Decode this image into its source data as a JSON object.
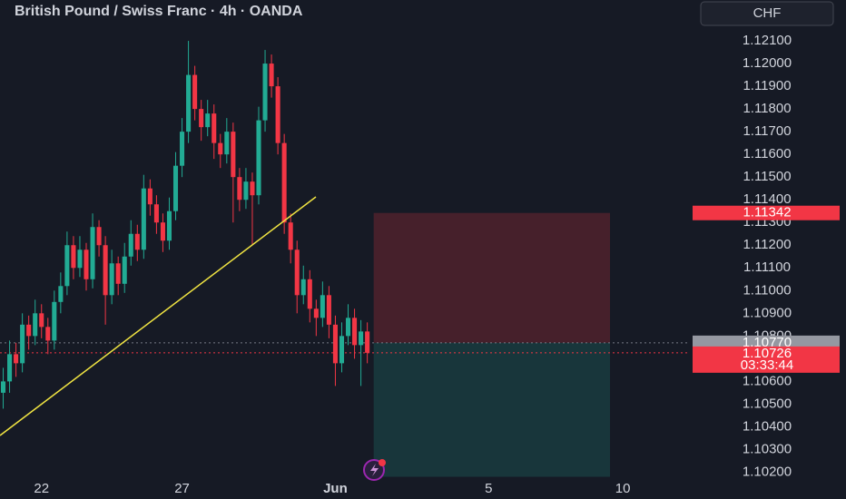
{
  "chart_data": {
    "type": "candlestick",
    "title": "British Pound / Swiss Franc · 4h · OANDA",
    "currency_button": "CHF",
    "up_color": "#22ab94",
    "down_color": "#f23645",
    "grid": false,
    "ylim": [
      1.1017,
      1.1228
    ],
    "yticks": [
      {
        "value": 1.102,
        "label": "1.10200"
      },
      {
        "value": 1.103,
        "label": "1.10300"
      },
      {
        "value": 1.104,
        "label": "1.10400"
      },
      {
        "value": 1.105,
        "label": "1.10500"
      },
      {
        "value": 1.106,
        "label": "1.10600"
      },
      {
        "value": 1.107,
        "label": "1.10700"
      },
      {
        "value": 1.108,
        "label": "1.10800"
      },
      {
        "value": 1.109,
        "label": "1.10900"
      },
      {
        "value": 1.11,
        "label": "1.11000"
      },
      {
        "value": 1.111,
        "label": "1.11100"
      },
      {
        "value": 1.112,
        "label": "1.11200"
      },
      {
        "value": 1.113,
        "label": "1.11300"
      },
      {
        "value": 1.114,
        "label": "1.11400"
      },
      {
        "value": 1.115,
        "label": "1.11500"
      },
      {
        "value": 1.116,
        "label": "1.11600"
      },
      {
        "value": 1.117,
        "label": "1.11700"
      },
      {
        "value": 1.118,
        "label": "1.11800"
      },
      {
        "value": 1.119,
        "label": "1.11900"
      },
      {
        "value": 1.12,
        "label": "1.12000"
      },
      {
        "value": 1.121,
        "label": "1.12100"
      }
    ],
    "categories": [
      null,
      null,
      null,
      null,
      null,
      null,
      "22",
      null,
      null,
      null,
      null,
      null,
      null,
      null,
      null,
      null,
      null,
      null,
      null,
      null,
      null,
      null,
      null,
      null,
      null,
      null,
      null,
      null,
      "27",
      null,
      null,
      null,
      null,
      null,
      null,
      null,
      null,
      null,
      null,
      null,
      null,
      null,
      null,
      null,
      null,
      null,
      null,
      null,
      null,
      null,
      null,
      null,
      "Jun",
      null,
      null,
      null,
      null,
      null,
      null,
      null,
      null,
      null,
      null,
      null,
      null,
      null,
      null,
      null,
      null,
      null,
      null,
      null,
      null,
      null,
      null,
      null,
      "5",
      null,
      null,
      null,
      null,
      null,
      null,
      null,
      null,
      null,
      null,
      null,
      null,
      null,
      null,
      null,
      null,
      null,
      null,
      null,
      null,
      "10",
      null,
      null,
      null,
      null,
      null,
      null,
      null,
      null,
      null,
      null
    ],
    "values": [
      [
        1.1055,
        1.1066,
        1.1048,
        1.106
      ],
      [
        1.106,
        1.1078,
        1.1055,
        1.1072
      ],
      [
        1.1072,
        1.1077,
        1.1062,
        1.1068
      ],
      [
        1.1068,
        1.109,
        1.1064,
        1.1085
      ],
      [
        1.1085,
        1.1089,
        1.1074,
        1.108
      ],
      [
        1.108,
        1.1096,
        1.1076,
        1.109
      ],
      [
        1.109,
        1.1094,
        1.1079,
        1.1084
      ],
      [
        1.1084,
        1.1088,
        1.1072,
        1.1078
      ],
      [
        1.1078,
        1.11,
        1.1074,
        1.1095
      ],
      [
        1.1095,
        1.1108,
        1.109,
        1.1102
      ],
      [
        1.1102,
        1.1126,
        1.1098,
        1.112
      ],
      [
        1.112,
        1.1124,
        1.1105,
        1.111
      ],
      [
        1.111,
        1.1124,
        1.1106,
        1.1118
      ],
      [
        1.1118,
        1.1121,
        1.11,
        1.1105
      ],
      [
        1.1105,
        1.1134,
        1.1101,
        1.1128
      ],
      [
        1.1128,
        1.1131,
        1.1115,
        1.112
      ],
      [
        1.112,
        1.1124,
        1.1085,
        1.1098
      ],
      [
        1.1098,
        1.1118,
        1.1094,
        1.1112
      ],
      [
        1.1112,
        1.1115,
        1.1098,
        1.1103
      ],
      [
        1.1103,
        1.1121,
        1.1099,
        1.1115
      ],
      [
        1.1115,
        1.1131,
        1.1111,
        1.1125
      ],
      [
        1.1125,
        1.1129,
        1.1113,
        1.1118
      ],
      [
        1.1118,
        1.1151,
        1.1114,
        1.1145
      ],
      [
        1.1145,
        1.1149,
        1.1133,
        1.1138
      ],
      [
        1.1138,
        1.1142,
        1.1125,
        1.113
      ],
      [
        1.113,
        1.1134,
        1.1117,
        1.1122
      ],
      [
        1.1122,
        1.1141,
        1.1118,
        1.1135
      ],
      [
        1.1135,
        1.1161,
        1.1131,
        1.1155
      ],
      [
        1.1155,
        1.1176,
        1.115,
        1.117
      ],
      [
        1.117,
        1.121,
        1.1165,
        1.1195
      ],
      [
        1.1195,
        1.1199,
        1.1175,
        1.118
      ],
      [
        1.118,
        1.1184,
        1.1166,
        1.1172
      ],
      [
        1.1172,
        1.1184,
        1.1168,
        1.1178
      ],
      [
        1.1178,
        1.1182,
        1.1158,
        1.1165
      ],
      [
        1.1165,
        1.1169,
        1.1154,
        1.116
      ],
      [
        1.116,
        1.1176,
        1.1156,
        1.117
      ],
      [
        1.117,
        1.1174,
        1.113,
        1.115
      ],
      [
        1.115,
        1.1154,
        1.1135,
        1.114
      ],
      [
        1.114,
        1.1154,
        1.1136,
        1.1148
      ],
      [
        1.1148,
        1.1152,
        1.112,
        1.1142
      ],
      [
        1.1142,
        1.1181,
        1.1138,
        1.1175
      ],
      [
        1.1175,
        1.1206,
        1.117,
        1.12
      ],
      [
        1.12,
        1.1204,
        1.1185,
        1.119
      ],
      [
        1.119,
        1.1194,
        1.116,
        1.1165
      ],
      [
        1.1165,
        1.1169,
        1.1125,
        1.113
      ],
      [
        1.113,
        1.1134,
        1.1112,
        1.1118
      ],
      [
        1.1118,
        1.1122,
        1.109,
        1.1098
      ],
      [
        1.1098,
        1.1111,
        1.1094,
        1.1105
      ],
      [
        1.1105,
        1.1109,
        1.1086,
        1.1092
      ],
      [
        1.1092,
        1.1096,
        1.108,
        1.1088
      ],
      [
        1.1088,
        1.1104,
        1.1084,
        1.1098
      ],
      [
        1.1098,
        1.1102,
        1.1079,
        1.1085
      ],
      [
        1.1085,
        1.1089,
        1.1058,
        1.1068
      ],
      [
        1.1068,
        1.1086,
        1.1064,
        1.108
      ],
      [
        1.108,
        1.1094,
        1.1076,
        1.1088
      ],
      [
        1.1088,
        1.1092,
        1.107,
        1.1076
      ],
      [
        1.1076,
        1.1087,
        1.1058,
        1.1082
      ],
      [
        1.1082,
        1.1086,
        1.1068,
        1.10726
      ],
      null,
      null,
      null,
      null,
      null,
      null,
      null,
      null,
      null,
      null,
      null,
      null,
      null,
      null,
      null,
      null,
      null,
      null,
      null,
      null,
      null,
      null,
      null,
      null,
      null,
      null,
      null,
      null,
      null,
      null,
      null,
      null,
      null,
      null,
      null,
      null,
      null,
      null,
      null,
      null,
      null,
      null,
      null,
      null,
      null,
      null,
      null,
      null,
      null,
      null
    ],
    "position": {
      "stop": {
        "value": 1.11342,
        "label": "1.11342"
      },
      "entry": {
        "value": 1.1077,
        "label": "1.10770"
      },
      "target": 1.1018
    },
    "current_price": {
      "value": 1.10726,
      "label": "1.10726"
    },
    "countdown": "03:33:44"
  }
}
